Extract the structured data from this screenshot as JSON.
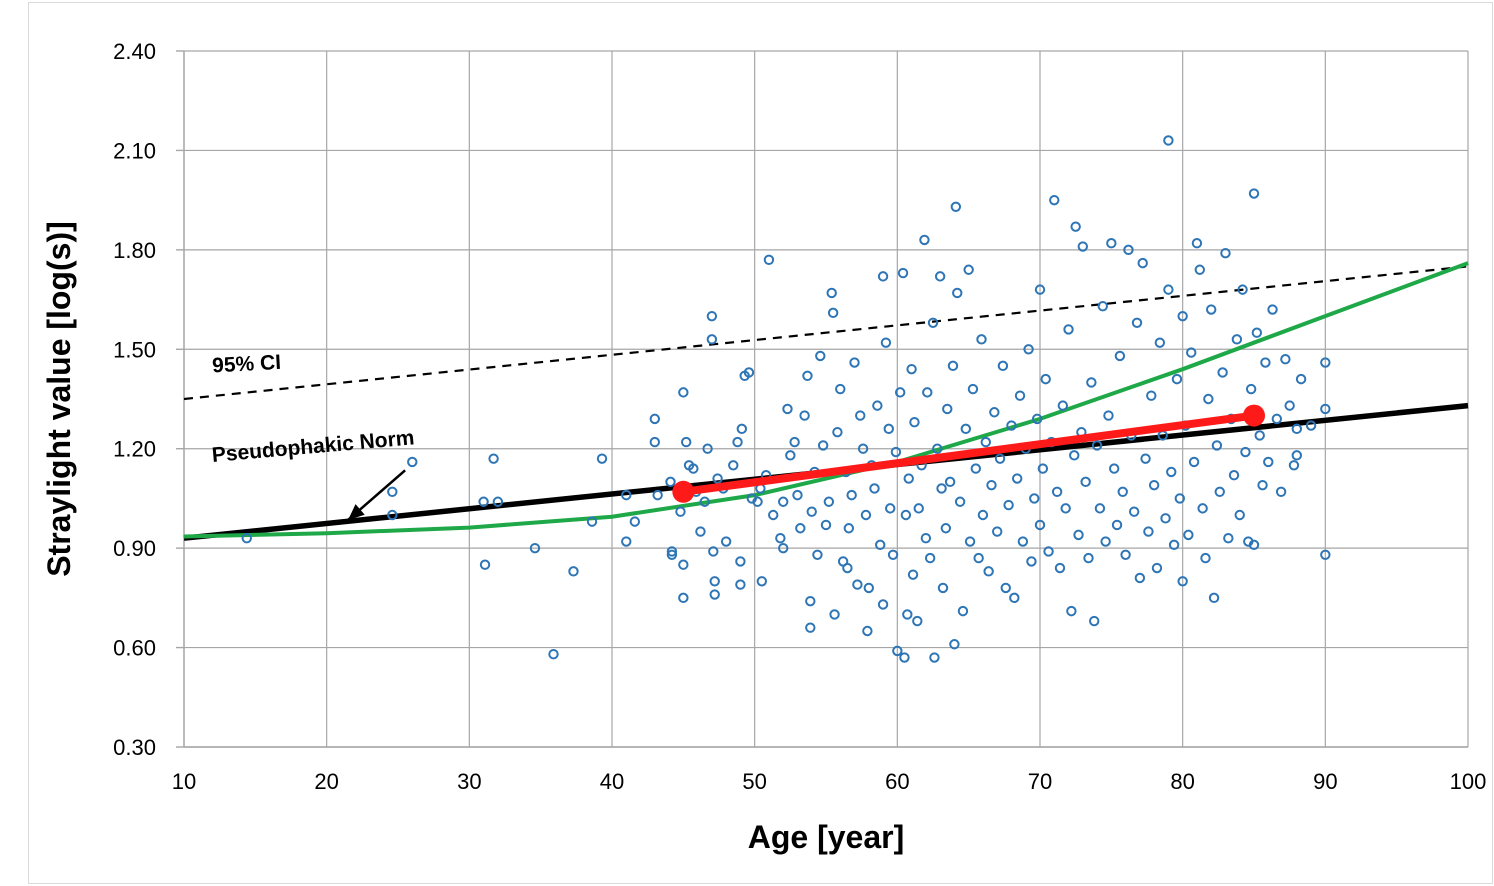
{
  "chart_data": {
    "type": "scatter",
    "xlabel": "Age [year]",
    "ylabel": "Straylight value [log(s)]",
    "xlim": [
      10,
      100
    ],
    "ylim": [
      0.3,
      2.4
    ],
    "x_ticks": [
      "10",
      "20",
      "30",
      "40",
      "50",
      "60",
      "70",
      "80",
      "90",
      "100"
    ],
    "y_ticks": [
      "0.30",
      "0.60",
      "0.90",
      "1.20",
      "1.50",
      "1.80",
      "2.10",
      "2.40"
    ],
    "grid": true,
    "annotations": [
      {
        "text": "95% CI",
        "x": 12.0,
        "y": 1.43
      },
      {
        "text": "Pseudophakic Norm",
        "x": 12.0,
        "y": 1.16,
        "arrow_to": [
          21.5,
          0.985
        ]
      }
    ],
    "scatter_points": [
      [
        14.4,
        0.93
      ],
      [
        24.6,
        1.07
      ],
      [
        24.6,
        1.0
      ],
      [
        26.0,
        1.16
      ],
      [
        31.0,
        1.04
      ],
      [
        31.1,
        0.85
      ],
      [
        31.7,
        1.17
      ],
      [
        32.0,
        1.04
      ],
      [
        34.6,
        0.9
      ],
      [
        35.9,
        0.58
      ],
      [
        37.3,
        0.83
      ],
      [
        38.6,
        0.98
      ],
      [
        39.3,
        1.17
      ],
      [
        41.0,
        1.06
      ],
      [
        41.0,
        0.92
      ],
      [
        41.6,
        0.98
      ],
      [
        43.0,
        1.29
      ],
      [
        43.0,
        1.22
      ],
      [
        43.2,
        1.06
      ],
      [
        44.1,
        1.1
      ],
      [
        44.2,
        0.89
      ],
      [
        44.2,
        0.88
      ],
      [
        44.8,
        1.01
      ],
      [
        45.0,
        1.37
      ],
      [
        45.0,
        0.85
      ],
      [
        45.0,
        0.75
      ],
      [
        45.2,
        1.22
      ],
      [
        45.4,
        1.15
      ],
      [
        45.7,
        1.14
      ],
      [
        45.9,
        1.07
      ],
      [
        46.2,
        0.95
      ],
      [
        46.5,
        1.04
      ],
      [
        46.7,
        1.2
      ],
      [
        47.0,
        1.6
      ],
      [
        47.0,
        1.53
      ],
      [
        47.1,
        0.89
      ],
      [
        47.2,
        0.8
      ],
      [
        47.2,
        0.76
      ],
      [
        47.4,
        1.11
      ],
      [
        47.8,
        1.08
      ],
      [
        48.0,
        0.92
      ],
      [
        48.5,
        1.15
      ],
      [
        48.8,
        1.22
      ],
      [
        49.0,
        0.86
      ],
      [
        49.0,
        0.79
      ],
      [
        49.1,
        1.26
      ],
      [
        49.3,
        1.42
      ],
      [
        49.6,
        1.43
      ],
      [
        49.8,
        1.05
      ],
      [
        50.2,
        1.04
      ],
      [
        50.4,
        1.08
      ],
      [
        50.5,
        0.8
      ],
      [
        50.8,
        1.12
      ],
      [
        51.0,
        1.77
      ],
      [
        51.3,
        1.0
      ],
      [
        51.8,
        0.93
      ],
      [
        52.0,
        1.04
      ],
      [
        52.0,
        0.9
      ],
      [
        52.3,
        1.32
      ],
      [
        52.5,
        1.18
      ],
      [
        52.8,
        1.22
      ],
      [
        53.0,
        1.06
      ],
      [
        53.2,
        0.96
      ],
      [
        53.5,
        1.3
      ],
      [
        53.7,
        1.42
      ],
      [
        53.9,
        0.74
      ],
      [
        53.9,
        0.66
      ],
      [
        54.0,
        1.01
      ],
      [
        54.2,
        1.13
      ],
      [
        54.4,
        0.88
      ],
      [
        54.6,
        1.48
      ],
      [
        54.8,
        1.21
      ],
      [
        55.0,
        0.97
      ],
      [
        55.2,
        1.04
      ],
      [
        55.4,
        1.67
      ],
      [
        55.5,
        1.61
      ],
      [
        55.6,
        0.7
      ],
      [
        55.8,
        1.25
      ],
      [
        56.0,
        1.38
      ],
      [
        56.2,
        0.86
      ],
      [
        56.4,
        1.13
      ],
      [
        56.5,
        0.84
      ],
      [
        56.6,
        0.96
      ],
      [
        56.8,
        1.06
      ],
      [
        57.0,
        1.46
      ],
      [
        57.2,
        0.79
      ],
      [
        57.4,
        1.3
      ],
      [
        57.6,
        1.2
      ],
      [
        57.8,
        1.0
      ],
      [
        57.9,
        0.65
      ],
      [
        58.0,
        0.78
      ],
      [
        58.2,
        1.15
      ],
      [
        58.4,
        1.08
      ],
      [
        58.6,
        1.33
      ],
      [
        58.8,
        0.91
      ],
      [
        59.0,
        1.72
      ],
      [
        59.0,
        0.73
      ],
      [
        59.2,
        1.52
      ],
      [
        59.4,
        1.26
      ],
      [
        59.5,
        1.02
      ],
      [
        59.7,
        0.88
      ],
      [
        59.9,
        1.19
      ],
      [
        60.0,
        0.59
      ],
      [
        60.2,
        1.37
      ],
      [
        60.4,
        1.73
      ],
      [
        60.5,
        0.57
      ],
      [
        60.6,
        1.0
      ],
      [
        60.7,
        0.7
      ],
      [
        60.8,
        1.11
      ],
      [
        61.0,
        1.44
      ],
      [
        61.1,
        0.82
      ],
      [
        61.2,
        1.28
      ],
      [
        61.4,
        0.68
      ],
      [
        61.5,
        1.02
      ],
      [
        61.7,
        1.15
      ],
      [
        61.9,
        1.83
      ],
      [
        62.0,
        0.93
      ],
      [
        62.1,
        1.37
      ],
      [
        62.3,
        0.87
      ],
      [
        62.5,
        1.58
      ],
      [
        62.6,
        0.57
      ],
      [
        62.8,
        1.2
      ],
      [
        63.0,
        1.72
      ],
      [
        63.1,
        1.08
      ],
      [
        63.2,
        0.78
      ],
      [
        63.4,
        0.96
      ],
      [
        63.5,
        1.32
      ],
      [
        63.7,
        1.1
      ],
      [
        63.9,
        1.45
      ],
      [
        64.0,
        0.61
      ],
      [
        64.1,
        1.93
      ],
      [
        64.2,
        1.67
      ],
      [
        64.4,
        1.04
      ],
      [
        64.6,
        0.71
      ],
      [
        64.8,
        1.26
      ],
      [
        65.0,
        1.74
      ],
      [
        65.1,
        0.92
      ],
      [
        65.3,
        1.38
      ],
      [
        65.5,
        1.14
      ],
      [
        65.7,
        0.87
      ],
      [
        65.9,
        1.53
      ],
      [
        66.0,
        1.0
      ],
      [
        66.2,
        1.22
      ],
      [
        66.4,
        0.83
      ],
      [
        66.6,
        1.09
      ],
      [
        66.8,
        1.31
      ],
      [
        67.0,
        0.95
      ],
      [
        67.2,
        1.17
      ],
      [
        67.4,
        1.45
      ],
      [
        67.6,
        0.78
      ],
      [
        67.8,
        1.03
      ],
      [
        68.0,
        1.27
      ],
      [
        68.2,
        0.75
      ],
      [
        68.4,
        1.11
      ],
      [
        68.6,
        1.36
      ],
      [
        68.8,
        0.92
      ],
      [
        69.0,
        1.2
      ],
      [
        69.2,
        1.5
      ],
      [
        69.4,
        0.86
      ],
      [
        69.6,
        1.05
      ],
      [
        69.8,
        1.29
      ],
      [
        70.0,
        1.68
      ],
      [
        70.0,
        0.97
      ],
      [
        70.2,
        1.14
      ],
      [
        70.4,
        1.41
      ],
      [
        70.6,
        0.89
      ],
      [
        70.8,
        1.22
      ],
      [
        71.0,
        1.95
      ],
      [
        71.2,
        1.07
      ],
      [
        71.4,
        0.84
      ],
      [
        71.6,
        1.33
      ],
      [
        71.8,
        1.02
      ],
      [
        72.0,
        1.56
      ],
      [
        72.2,
        0.71
      ],
      [
        72.4,
        1.18
      ],
      [
        72.5,
        1.87
      ],
      [
        72.7,
        0.94
      ],
      [
        72.9,
        1.25
      ],
      [
        73.0,
        1.81
      ],
      [
        73.2,
        1.1
      ],
      [
        73.4,
        0.87
      ],
      [
        73.6,
        1.4
      ],
      [
        73.8,
        0.68
      ],
      [
        74.0,
        1.21
      ],
      [
        74.2,
        1.02
      ],
      [
        74.4,
        1.63
      ],
      [
        74.6,
        0.92
      ],
      [
        74.8,
        1.3
      ],
      [
        75.0,
        1.82
      ],
      [
        75.2,
        1.14
      ],
      [
        75.4,
        0.97
      ],
      [
        75.6,
        1.48
      ],
      [
        75.8,
        1.07
      ],
      [
        76.0,
        0.88
      ],
      [
        76.2,
        1.8
      ],
      [
        76.4,
        1.24
      ],
      [
        76.6,
        1.01
      ],
      [
        76.8,
        1.58
      ],
      [
        77.0,
        0.81
      ],
      [
        77.2,
        1.76
      ],
      [
        77.4,
        1.17
      ],
      [
        77.6,
        0.95
      ],
      [
        77.8,
        1.36
      ],
      [
        78.0,
        1.09
      ],
      [
        78.2,
        0.84
      ],
      [
        78.4,
        1.52
      ],
      [
        78.6,
        1.24
      ],
      [
        78.8,
        0.99
      ],
      [
        79.0,
        2.13
      ],
      [
        79.0,
        1.68
      ],
      [
        79.2,
        1.13
      ],
      [
        79.4,
        0.91
      ],
      [
        79.6,
        1.41
      ],
      [
        79.8,
        1.05
      ],
      [
        80.0,
        0.8
      ],
      [
        80.0,
        1.6
      ],
      [
        80.2,
        1.27
      ],
      [
        80.4,
        0.94
      ],
      [
        80.6,
        1.49
      ],
      [
        80.8,
        1.16
      ],
      [
        81.0,
        1.82
      ],
      [
        81.2,
        1.74
      ],
      [
        81.4,
        1.02
      ],
      [
        81.6,
        0.87
      ],
      [
        81.8,
        1.35
      ],
      [
        82.0,
        1.62
      ],
      [
        82.2,
        0.75
      ],
      [
        82.4,
        1.21
      ],
      [
        82.6,
        1.07
      ],
      [
        82.8,
        1.43
      ],
      [
        83.0,
        1.79
      ],
      [
        83.2,
        0.93
      ],
      [
        83.4,
        1.29
      ],
      [
        83.6,
        1.12
      ],
      [
        83.8,
        1.53
      ],
      [
        84.0,
        1.0
      ],
      [
        84.2,
        1.68
      ],
      [
        84.4,
        1.19
      ],
      [
        84.6,
        0.92
      ],
      [
        84.8,
        1.38
      ],
      [
        85.0,
        1.97
      ],
      [
        85.0,
        0.91
      ],
      [
        85.2,
        1.55
      ],
      [
        85.4,
        1.24
      ],
      [
        85.6,
        1.09
      ],
      [
        85.8,
        1.46
      ],
      [
        86.0,
        1.16
      ],
      [
        86.3,
        1.62
      ],
      [
        86.6,
        1.29
      ],
      [
        86.9,
        1.07
      ],
      [
        87.2,
        1.47
      ],
      [
        87.5,
        1.33
      ],
      [
        87.8,
        1.15
      ],
      [
        88.0,
        1.26
      ],
      [
        88.0,
        1.18
      ],
      [
        88.3,
        1.41
      ],
      [
        89.0,
        1.27
      ],
      [
        90.0,
        1.46
      ],
      [
        90.0,
        1.32
      ],
      [
        90.0,
        0.88
      ]
    ],
    "series": [
      {
        "kind": "line",
        "color": "#000000",
        "dash": false,
        "points": [
          [
            10,
            0.93
          ],
          [
            100,
            1.33
          ]
        ]
      },
      {
        "kind": "line",
        "color": "#000000",
        "dash": true,
        "points": [
          [
            10,
            1.35
          ],
          [
            100,
            1.75
          ]
        ]
      },
      {
        "kind": "curve",
        "color": "#1ea848",
        "points": [
          [
            10,
            0.935
          ],
          [
            20,
            0.945
          ],
          [
            30,
            0.962
          ],
          [
            40,
            0.995
          ],
          [
            50,
            1.06
          ],
          [
            60,
            1.16
          ],
          [
            70,
            1.29
          ],
          [
            80,
            1.44
          ],
          [
            90,
            1.6
          ],
          [
            100,
            1.76
          ]
        ]
      },
      {
        "kind": "segment",
        "color": "#ff1a1a",
        "points": [
          [
            45,
            1.07
          ],
          [
            85,
            1.3
          ]
        ]
      }
    ]
  }
}
